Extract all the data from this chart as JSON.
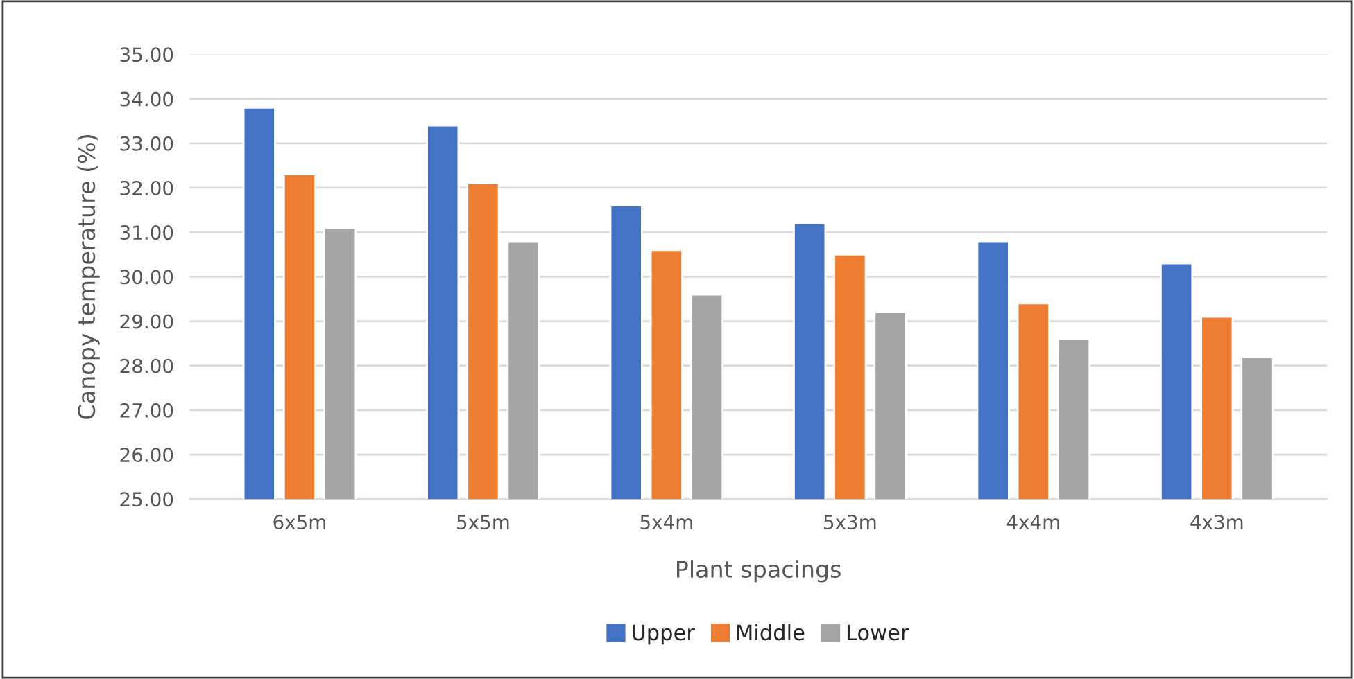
{
  "chart_data": {
    "type": "bar",
    "xlabel": "Plant spacings",
    "ylabel": "Canopy temperature (%)",
    "categories": [
      "6x5m",
      "5x5m",
      "5x4m",
      "5x3m",
      "4x4m",
      "4x3m"
    ],
    "series": [
      {
        "name": "Upper",
        "color": "#4472c4",
        "values": [
          33.8,
          33.4,
          31.6,
          31.2,
          30.8,
          30.3
        ]
      },
      {
        "name": "Middle",
        "color": "#ed7d31",
        "values": [
          32.3,
          32.1,
          30.6,
          30.5,
          29.4,
          29.1
        ]
      },
      {
        "name": "Lower",
        "color": "#a5a5a5",
        "values": [
          31.1,
          30.8,
          29.6,
          29.2,
          28.6,
          28.2
        ]
      }
    ],
    "ylim": [
      25,
      35
    ],
    "yticks": [
      {
        "value": 25,
        "label": "25.00"
      },
      {
        "value": 26,
        "label": "26.00"
      },
      {
        "value": 27,
        "label": "27.00"
      },
      {
        "value": 28,
        "label": "28.00"
      },
      {
        "value": 29,
        "label": "29.00"
      },
      {
        "value": 30,
        "label": "30.00"
      },
      {
        "value": 31,
        "label": "31.00"
      },
      {
        "value": 32,
        "label": "32.00"
      },
      {
        "value": 33,
        "label": "33.00"
      },
      {
        "value": 34,
        "label": "34.00"
      },
      {
        "value": 35,
        "label": "35.00"
      }
    ],
    "grid": "y",
    "legend": "bottom"
  }
}
